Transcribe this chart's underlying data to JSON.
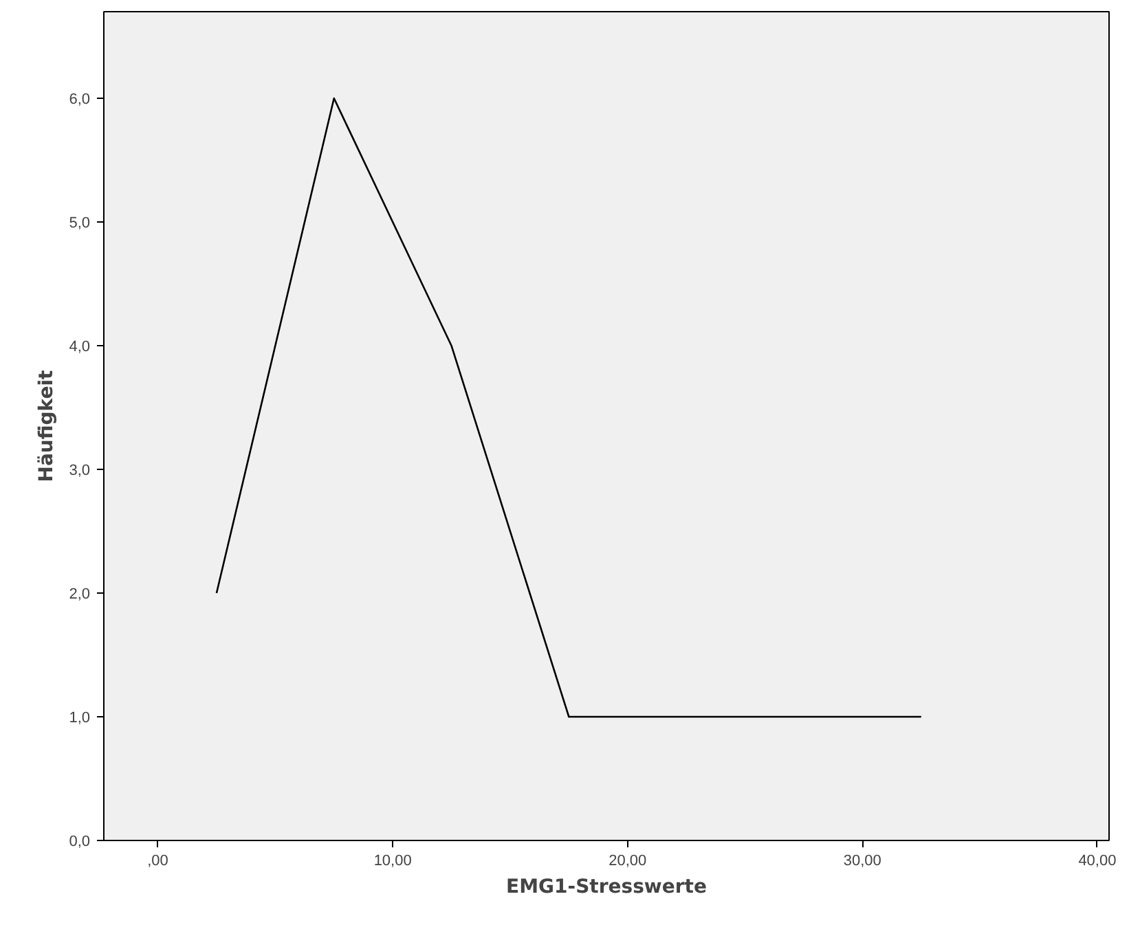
{
  "chart_data": {
    "type": "line",
    "xlabel": "EMG1-Stresswerte",
    "ylabel": "Häufigkeit",
    "x": [
      2.5,
      7.5,
      12.5,
      17.5,
      22.5,
      27.5,
      32.5
    ],
    "series": [
      {
        "color": "#000000",
        "values": [
          2,
          6,
          4,
          1,
          1,
          1,
          1
        ]
      }
    ],
    "xlim": [
      -2.3,
      40.5
    ],
    "ylim": [
      0,
      6.7
    ],
    "xticks": [
      {
        "value": 0,
        "label": ",00"
      },
      {
        "value": 10,
        "label": "10,00"
      },
      {
        "value": 20,
        "label": "20,00"
      },
      {
        "value": 30,
        "label": "30,00"
      },
      {
        "value": 40,
        "label": "40,00"
      }
    ],
    "yticks": [
      {
        "value": 0,
        "label": "0,0"
      },
      {
        "value": 1,
        "label": "1,0"
      },
      {
        "value": 2,
        "label": "2,0"
      },
      {
        "value": 3,
        "label": "3,0"
      },
      {
        "value": 4,
        "label": "4,0"
      },
      {
        "value": 5,
        "label": "5,0"
      },
      {
        "value": 6,
        "label": "6,0"
      }
    ],
    "line_style": "solid"
  }
}
